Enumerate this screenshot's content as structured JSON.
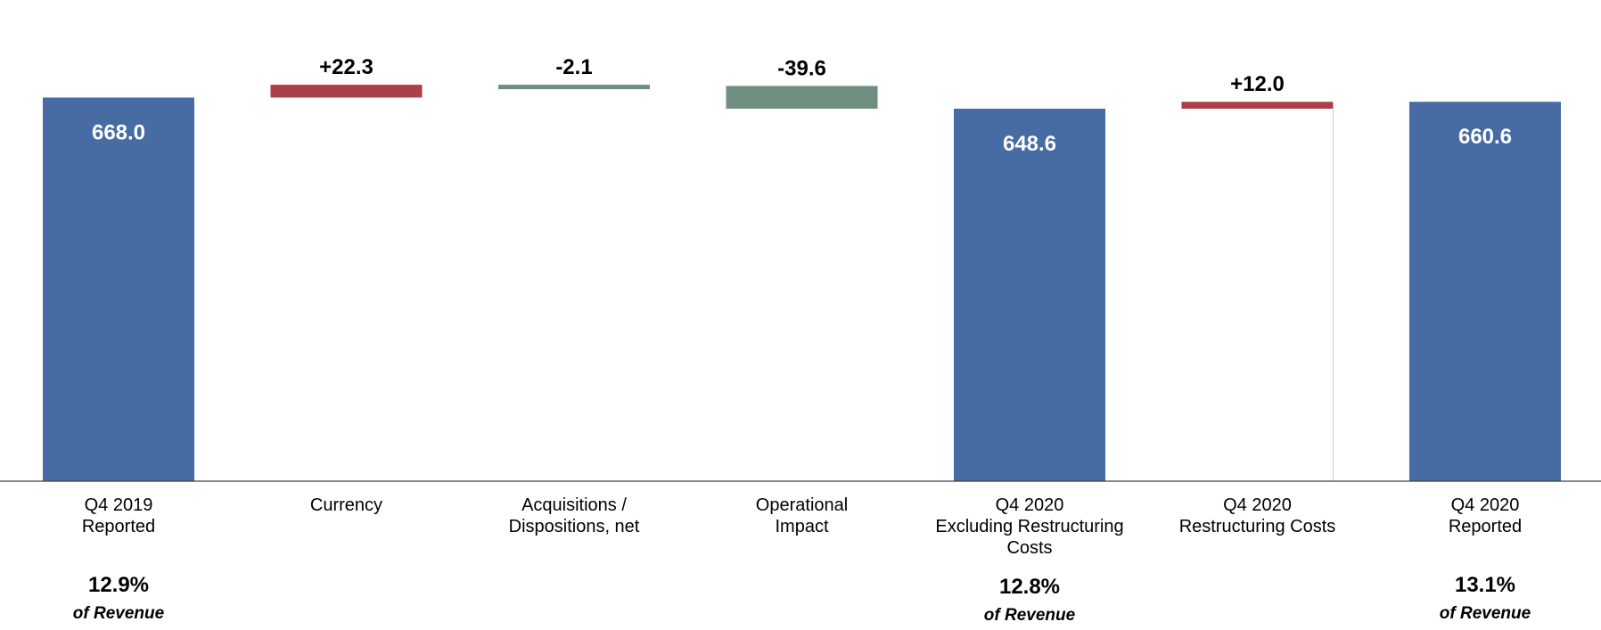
{
  "chart_data": {
    "type": "bar",
    "subtype": "waterfall",
    "categories": [
      {
        "lines": [
          "Q4 2019",
          "Reported"
        ]
      },
      {
        "lines": [
          "Currency"
        ]
      },
      {
        "lines": [
          "Acquisitions /",
          "Dispositions, net"
        ]
      },
      {
        "lines": [
          "Operational",
          "Impact"
        ]
      },
      {
        "lines": [
          "Q4 2020",
          "Excluding Restructuring",
          "Costs"
        ]
      },
      {
        "lines": [
          "Q4 2020",
          "Restructuring Costs"
        ]
      },
      {
        "lines": [
          "Q4 2020",
          "Reported"
        ]
      }
    ],
    "bars": [
      {
        "kind": "total",
        "start": 0,
        "end": 668.0,
        "label": "668.0",
        "color": "#466ca3",
        "pct": "12.9%",
        "pct_sub": "of Revenue"
      },
      {
        "kind": "increase",
        "start": 668.0,
        "end": 690.3,
        "label": "+22.3",
        "color": "#ab3f4a"
      },
      {
        "kind": "decrease",
        "start": 690.3,
        "end": 688.2,
        "label": "-2.1",
        "color": "#6e8f7f"
      },
      {
        "kind": "decrease",
        "start": 688.2,
        "end": 648.6,
        "label": "-39.6",
        "color": "#6e8f7f"
      },
      {
        "kind": "total",
        "start": 0,
        "end": 648.6,
        "label": "648.6",
        "color": "#466ca3",
        "pct": "12.8%",
        "pct_sub": "of Revenue"
      },
      {
        "kind": "increase",
        "start": 648.6,
        "end": 660.6,
        "label": "+12.0",
        "color": "#ab3f4a"
      },
      {
        "kind": "total",
        "start": 0,
        "end": 660.6,
        "label": "660.6",
        "color": "#466ca3",
        "pct": "13.1%",
        "pct_sub": "of Revenue"
      }
    ],
    "ylim": [
      0,
      700
    ],
    "grid": false,
    "legend": "none"
  }
}
